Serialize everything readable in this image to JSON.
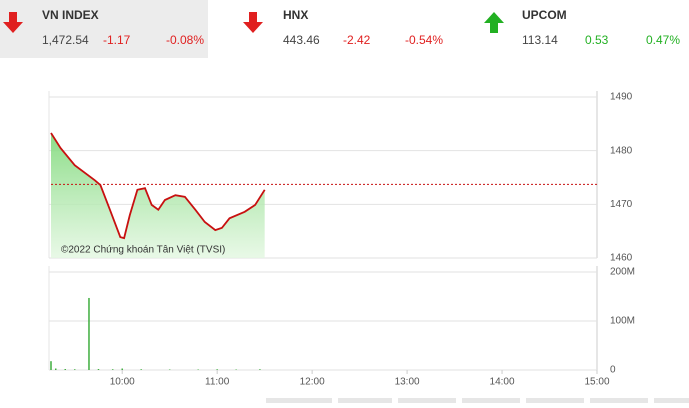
{
  "header": {
    "indices": [
      {
        "name": "VN INDEX",
        "value": "1,472.54",
        "change": "-1.17",
        "change_pct": "-0.08%",
        "direction": "down",
        "color": "#e02020"
      },
      {
        "name": "HNX",
        "value": "443.46",
        "change": "-2.42",
        "change_pct": "-0.54%",
        "direction": "down",
        "color": "#e02020"
      },
      {
        "name": "UPCOM",
        "value": "113.14",
        "change": "0.53",
        "change_pct": "0.47%",
        "direction": "up",
        "color": "#22b022"
      }
    ]
  },
  "chart_data": [
    {
      "type": "line",
      "annotation": "©2022 Chứng khoán Tân Việt (TVSI)",
      "x": [
        9.25,
        9.35,
        9.5,
        9.71,
        9.77,
        9.87,
        9.98,
        10.02,
        10.08,
        10.16,
        10.24,
        10.31,
        10.38,
        10.45,
        10.56,
        10.66,
        10.77,
        10.87,
        10.98,
        11.05,
        11.13,
        11.29,
        11.4,
        11.5
      ],
      "series": [
        {
          "name": "VN INDEX",
          "color": "#c81010",
          "values": [
            1483.3,
            1480.5,
            1477.3,
            1474.5,
            1473.6,
            1469,
            1463.9,
            1463.7,
            1468,
            1472.7,
            1473,
            1469.9,
            1469,
            1470.8,
            1471.7,
            1471.4,
            1469,
            1466.7,
            1465.2,
            1465.6,
            1467.4,
            1468.6,
            1469.9,
            1472.7
          ]
        }
      ],
      "reference_line": 1473.71,
      "reference_color": "#c81010",
      "xlim": [
        9.25,
        15
      ],
      "ylim": [
        1460,
        1490
      ],
      "yticks": [
        1460,
        1470,
        1480,
        1490
      ],
      "grid": true
    },
    {
      "type": "bar",
      "color": "#3fae3f",
      "x": [
        9.25,
        9.3,
        9.4,
        9.5,
        9.65,
        9.75,
        9.9,
        10.0,
        10.2,
        10.5,
        10.8,
        11.0,
        11.2,
        11.45
      ],
      "values": [
        18000000,
        3000000,
        2000000,
        1500000,
        147000000,
        2000000,
        1500000,
        3000000,
        1500000,
        1000000,
        1000000,
        1500000,
        1000000,
        1500000
      ],
      "xlim": [
        9.25,
        15
      ],
      "xticks": [
        {
          "value": 10,
          "label": "10:00"
        },
        {
          "value": 11,
          "label": "11:00"
        },
        {
          "value": 12,
          "label": "12:00"
        },
        {
          "value": 13,
          "label": "13:00"
        },
        {
          "value": 14,
          "label": "14:00"
        },
        {
          "value": 15,
          "label": "15:00"
        }
      ],
      "ylim": [
        0,
        200000000
      ],
      "yticks": [
        0,
        {
          "value": 100000000,
          "label": "100M"
        },
        {
          "value": 200000000,
          "label": "200M"
        }
      ],
      "grid": true
    }
  ]
}
